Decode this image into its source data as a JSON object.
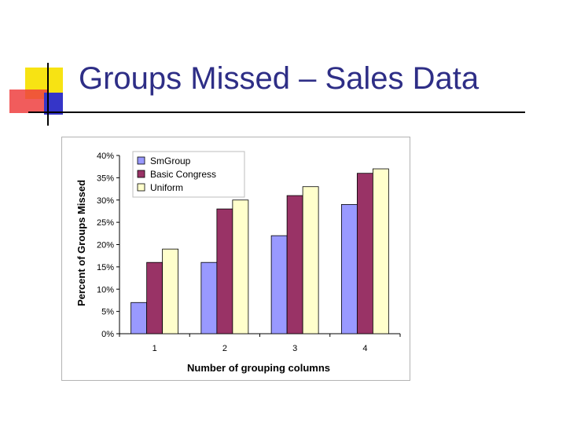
{
  "slide": {
    "title": "Groups Missed – Sales Data"
  },
  "colors": {
    "title": "#2e2e86",
    "ornament_yellow": "#f7e313",
    "ornament_red": "#ef3f3f",
    "ornament_blue": "#3535c8"
  },
  "chart_data": {
    "type": "bar",
    "title": "",
    "xlabel": "Number of grouping columns",
    "ylabel": "Percent of Groups Missed",
    "categories": [
      "1",
      "2",
      "3",
      "4"
    ],
    "ylim": [
      0,
      40
    ],
    "yticks": [
      0,
      5,
      10,
      15,
      20,
      25,
      30,
      35,
      40
    ],
    "ytick_labels": [
      "0%",
      "5%",
      "10%",
      "15%",
      "20%",
      "25%",
      "30%",
      "35%",
      "40%"
    ],
    "y_unit": "percent",
    "grid": false,
    "legend_position": "top-left",
    "series": [
      {
        "name": "SmGroup",
        "color": "#9999ff",
        "values": [
          7,
          16,
          22,
          29
        ]
      },
      {
        "name": "Basic Congress",
        "color": "#993366",
        "values": [
          16,
          28,
          31,
          36
        ]
      },
      {
        "name": "Uniform",
        "color": "#ffffcc",
        "values": [
          19,
          30,
          33,
          37
        ]
      }
    ]
  }
}
